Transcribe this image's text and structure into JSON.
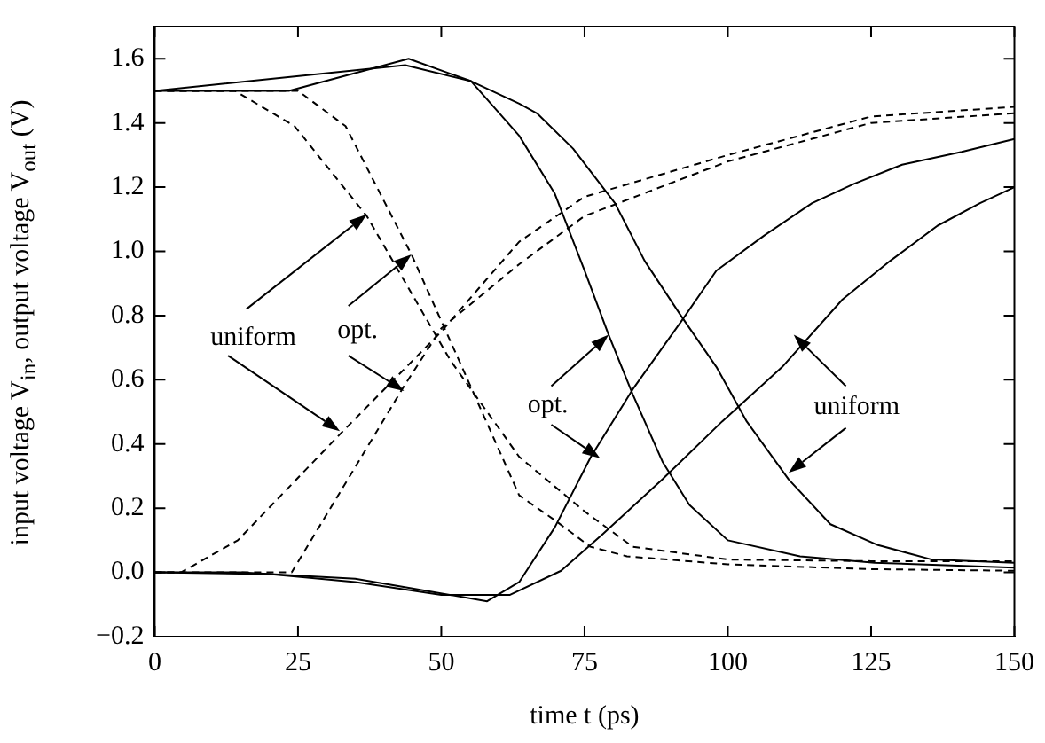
{
  "chart_data": {
    "type": "line",
    "xlabel": "time t (ps)",
    "ylabel": "input voltage V$_{in}$, output voltage V$_{out}$ (V)",
    "xlim": [
      0,
      150
    ],
    "xticks": [
      0,
      25,
      50,
      75,
      100,
      125,
      150
    ],
    "ylim": [
      -0.2,
      1.7
    ],
    "yticks": [
      -0.2,
      {
        "value": 0,
        "label": "0.0"
      },
      0.2,
      0.4,
      0.6,
      0.8,
      {
        "value": 1,
        "label": "1.0"
      },
      1.2,
      1.4,
      1.6
    ],
    "grid": false,
    "legend": false,
    "marker": "none",
    "series": [
      {
        "color": "#000000",
        "line_style": "dashed",
        "x": [
          0,
          4.6,
          14.5,
          32.3,
          50,
          63.6,
          75,
          100,
          125,
          150
        ],
        "values": [
          0,
          0,
          0.1,
          0.43,
          0.75,
          1.03,
          1.17,
          1.3,
          1.42,
          1.45
        ]
      },
      {
        "color": "#000000",
        "line_style": "dashed",
        "x": [
          0,
          23.9,
          43.5,
          50,
          63.6,
          75,
          100,
          125,
          150
        ],
        "values": [
          0,
          0,
          0.58,
          0.76,
          0.96,
          1.11,
          1.28,
          1.4,
          1.43
        ]
      },
      {
        "color": "#000000",
        "line_style": "dashed",
        "x": [
          0,
          14,
          24.4,
          37,
          51.6,
          63.6,
          75,
          83.4,
          100,
          125,
          150
        ],
        "values": [
          1.5,
          1.5,
          1.39,
          1.11,
          0.66,
          0.36,
          0.19,
          0.08,
          0.04,
          0.035,
          0.035
        ]
      },
      {
        "color": "#000000",
        "line_style": "dashed",
        "x": [
          0,
          25,
          33.3,
          44.8,
          53.1,
          63.6,
          70,
          76,
          82.4,
          100,
          125,
          150
        ],
        "values": [
          1.5,
          1.5,
          1.39,
          0.99,
          0.66,
          0.24,
          0.16,
          0.08,
          0.05,
          0.025,
          0.01,
          0.005
        ]
      },
      {
        "color": "#000000",
        "line_style": "solid",
        "x": [
          0,
          43.7,
          55.2,
          63.6,
          66.7,
          73,
          80.3,
          85.5,
          91.8,
          98,
          103.3,
          110.6,
          117.9,
          126.2,
          135.6,
          150
        ],
        "values": [
          1.5,
          1.58,
          1.53,
          1.46,
          1.43,
          1.32,
          1.15,
          0.97,
          0.8,
          0.64,
          0.47,
          0.29,
          0.15,
          0.085,
          0.04,
          0.03
        ]
      },
      {
        "color": "#000000",
        "line_style": "solid",
        "x": [
          0,
          23.4,
          44.3,
          55.2,
          63.6,
          69.8,
          75,
          79.2,
          83.4,
          88.6,
          93.3,
          100,
          112.6,
          125.6,
          150
        ],
        "values": [
          1.5,
          1.5,
          1.6,
          1.53,
          1.36,
          1.18,
          0.94,
          0.74,
          0.555,
          0.345,
          0.21,
          0.1,
          0.05,
          0.03,
          0.015
        ]
      },
      {
        "color": "#000000",
        "line_style": "solid",
        "x": [
          0,
          20,
          35,
          50,
          62,
          70.9,
          78.2,
          88.6,
          99,
          109.5,
          120,
          128.3,
          136.6,
          144,
          150
        ],
        "values": [
          0,
          -0.005,
          -0.03,
          -0.07,
          -0.07,
          0.005,
          0.12,
          0.29,
          0.47,
          0.64,
          0.85,
          0.97,
          1.08,
          1.15,
          1.2
        ]
      },
      {
        "color": "#000000",
        "line_style": "solid",
        "x": [
          0,
          15,
          25,
          35,
          45,
          58,
          63.6,
          69.8,
          76.1,
          83.4,
          91.8,
          98,
          106.4,
          114.7,
          122,
          130.4,
          140.8,
          150
        ],
        "values": [
          0,
          0,
          -0.01,
          -0.02,
          -0.05,
          -0.09,
          -0.03,
          0.14,
          0.36,
          0.57,
          0.78,
          0.94,
          1.05,
          1.15,
          1.21,
          1.27,
          1.31,
          1.35
        ]
      }
    ],
    "annotations": [
      "uniform",
      "opt.",
      "opt.",
      "uniform"
    ]
  }
}
